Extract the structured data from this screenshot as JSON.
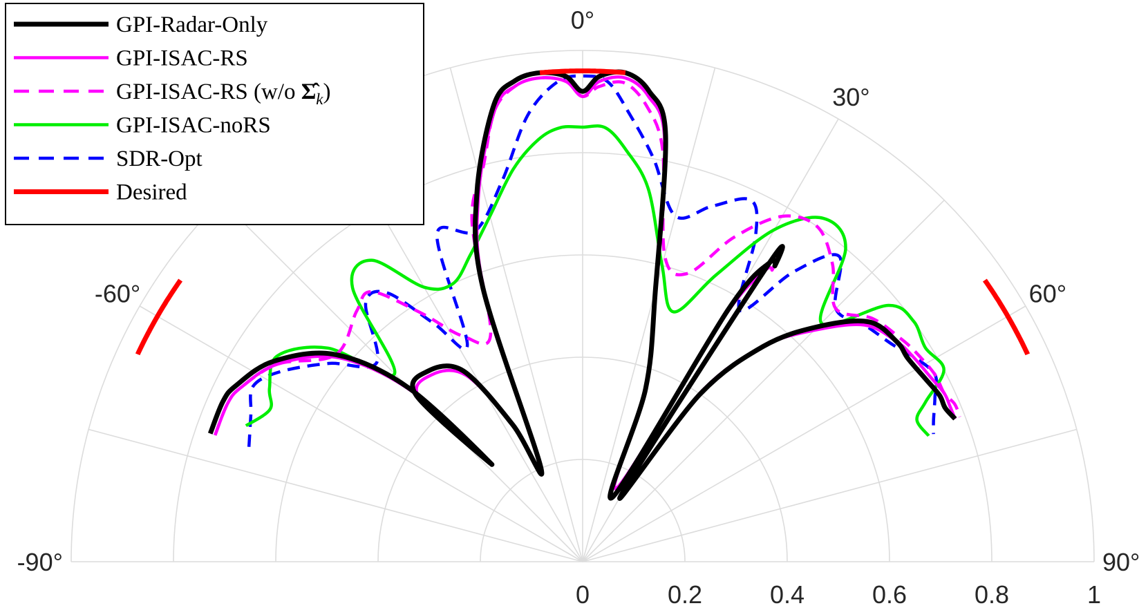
{
  "chart_data": {
    "type": "polar-line",
    "theta_range_deg": [
      -90,
      90
    ],
    "theta_ticks": [
      "-90°",
      "-60°",
      "0°",
      "30°",
      "60°",
      "90°"
    ],
    "theta_tick_values": [
      -90,
      -60,
      0,
      30,
      60,
      90
    ],
    "r_ticks": [
      "0",
      "0.2",
      "0.4",
      "0.6",
      "0.8",
      "1"
    ],
    "r_tick_values": [
      0,
      0.2,
      0.4,
      0.6,
      0.8,
      1
    ],
    "rlim": [
      0,
      1
    ],
    "legend_location": "top-left",
    "series": [
      {
        "name": "GPI-Radar-Only",
        "color": "#000000",
        "style": "solid-thick",
        "theta": [
          -71,
          -66,
          -63,
          -57,
          -50,
          -45,
          -43,
          -45,
          -39,
          -32,
          -27,
          -24,
          -20,
          -16,
          -11,
          -8,
          -5,
          -2,
          0,
          2,
          5,
          8,
          11,
          15,
          20,
          25,
          30,
          32,
          33,
          32,
          30,
          35,
          40,
          45,
          50,
          55,
          58,
          62,
          65,
          67,
          69
        ],
        "r": [
          0.77,
          0.77,
          0.76,
          0.72,
          0.63,
          0.48,
          0.26,
          0.46,
          0.48,
          0.44,
          0.3,
          0.2,
          0.57,
          0.75,
          0.91,
          0.95,
          0.96,
          0.95,
          0.92,
          0.95,
          0.96,
          0.93,
          0.85,
          0.55,
          0.36,
          0.14,
          0.57,
          0.69,
          0.69,
          0.69,
          0.15,
          0.4,
          0.55,
          0.65,
          0.73,
          0.75,
          0.75,
          0.76,
          0.77,
          0.77,
          0.78
        ]
      },
      {
        "name": "GPI-ISAC-RS",
        "color": "#ff00ff",
        "style": "solid",
        "theta": [
          -71,
          -66,
          -63,
          -57,
          -50,
          -45,
          -43,
          -45,
          -39,
          -32,
          -27,
          -24,
          -20,
          -16,
          -11,
          -8,
          -5,
          -2,
          0,
          2,
          5,
          8,
          11,
          15,
          20,
          25,
          30,
          32,
          33,
          32,
          30,
          35,
          40,
          45,
          50,
          55,
          58,
          62,
          65,
          67,
          69
        ],
        "r": [
          0.76,
          0.76,
          0.75,
          0.71,
          0.62,
          0.47,
          0.26,
          0.45,
          0.47,
          0.43,
          0.3,
          0.21,
          0.56,
          0.74,
          0.9,
          0.94,
          0.95,
          0.94,
          0.91,
          0.94,
          0.95,
          0.92,
          0.84,
          0.55,
          0.36,
          0.16,
          0.55,
          0.67,
          0.68,
          0.68,
          0.17,
          0.41,
          0.55,
          0.64,
          0.72,
          0.75,
          0.76,
          0.77,
          0.78,
          0.78,
          0.78
        ]
      },
      {
        "name": "GPI-ISAC-RS (w/o Σ̂k)",
        "color": "#ff00ff",
        "style": "dashed",
        "theta": [
          -71,
          -66,
          -63,
          -57,
          -50,
          -42,
          -38,
          -33,
          -28,
          -22,
          -18,
          -14,
          -11,
          -8,
          -5,
          -2,
          0,
          2,
          5,
          8,
          11,
          15,
          20,
          25,
          30,
          35,
          40,
          45,
          50,
          55,
          58,
          62,
          65,
          67,
          69
        ],
        "r": [
          0.76,
          0.76,
          0.75,
          0.71,
          0.63,
          0.66,
          0.67,
          0.58,
          0.5,
          0.48,
          0.7,
          0.8,
          0.9,
          0.94,
          0.95,
          0.94,
          0.91,
          0.93,
          0.94,
          0.9,
          0.82,
          0.62,
          0.6,
          0.7,
          0.78,
          0.8,
          0.76,
          0.7,
          0.74,
          0.76,
          0.77,
          0.78,
          0.78,
          0.79,
          0.79
        ]
      },
      {
        "name": "GPI-ISAC-noRS",
        "color": "#00ee00",
        "style": "solid",
        "theta": [
          -68,
          -64,
          -61,
          -56,
          -50,
          -45,
          -40,
          -35,
          -30,
          -25,
          -20,
          -15,
          -10,
          -6,
          -3,
          0,
          3,
          6,
          10,
          15,
          20,
          25,
          30,
          35,
          40,
          45,
          50,
          54,
          58,
          62,
          65,
          67,
          70
        ],
        "r": [
          0.71,
          0.68,
          0.7,
          0.72,
          0.65,
          0.52,
          0.7,
          0.72,
          0.62,
          0.6,
          0.64,
          0.7,
          0.78,
          0.83,
          0.85,
          0.85,
          0.85,
          0.81,
          0.74,
          0.6,
          0.52,
          0.62,
          0.75,
          0.82,
          0.8,
          0.66,
          0.78,
          0.8,
          0.79,
          0.8,
          0.74,
          0.71,
          0.72
        ]
      },
      {
        "name": "SDR-Opt",
        "color": "#0000ff",
        "style": "dashed",
        "theta": [
          -71,
          -66,
          -62,
          -58,
          -52,
          -46,
          -40,
          -36,
          -32,
          -28,
          -24,
          -18,
          -12,
          -7,
          -3,
          0,
          3,
          6,
          10,
          15,
          20,
          25,
          28,
          32,
          36,
          40,
          45,
          50,
          55,
          58,
          62,
          65,
          68,
          70
        ],
        "r": [
          0.69,
          0.71,
          0.73,
          0.7,
          0.63,
          0.56,
          0.66,
          0.65,
          0.55,
          0.48,
          0.7,
          0.68,
          0.76,
          0.88,
          0.94,
          0.95,
          0.94,
          0.88,
          0.8,
          0.7,
          0.74,
          0.78,
          0.72,
          0.58,
          0.7,
          0.78,
          0.7,
          0.72,
          0.74,
          0.76,
          0.78,
          0.76,
          0.74,
          0.73
        ]
      },
      {
        "name": "Desired",
        "color": "#ff0000",
        "style": "solid-thick",
        "segments": [
          [
            -5,
            5
          ],
          [
            -65,
            -55
          ],
          [
            55,
            65
          ]
        ],
        "r": 0.96
      }
    ]
  }
}
